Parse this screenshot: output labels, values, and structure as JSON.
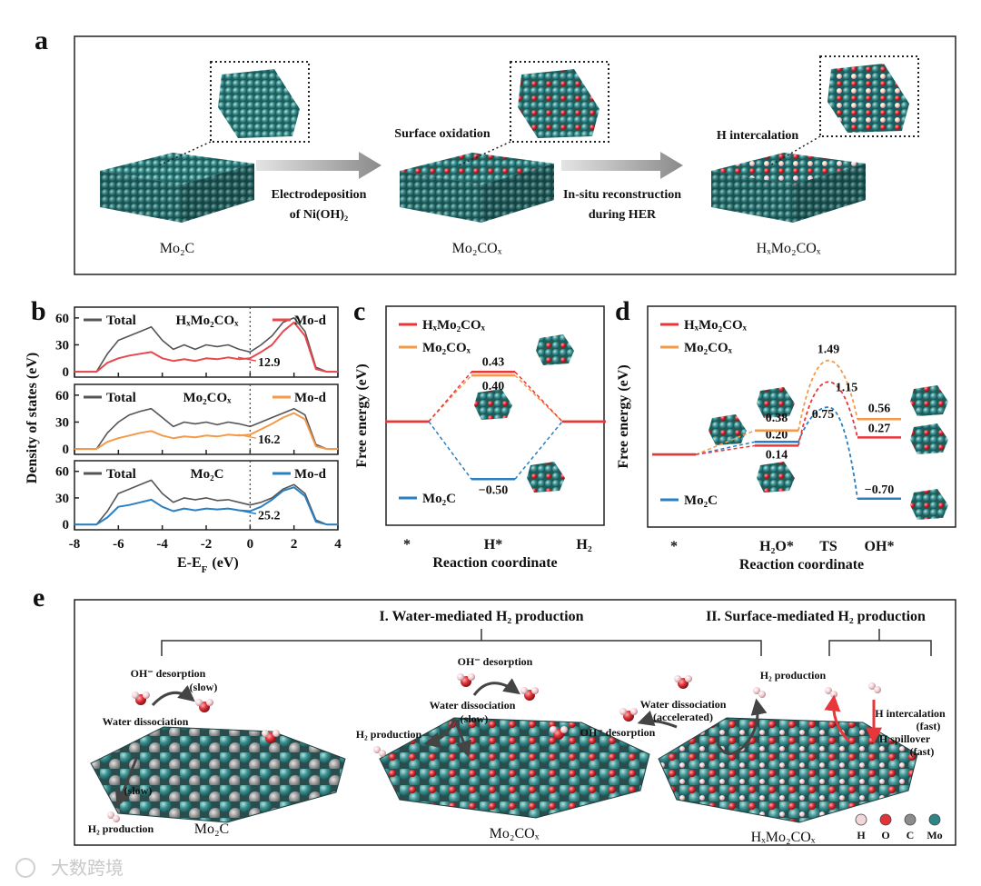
{
  "panels": {
    "a": {
      "label": "a",
      "materials": [
        "Mo₂C",
        "Mo₂COₓ",
        "HₓMo₂COₓ"
      ],
      "processes": [
        [
          "Electrodeposition",
          "of Ni(OH)₂"
        ],
        [
          "In-situ reconstruction",
          "during HER"
        ]
      ],
      "surface_notes": [
        "Surface oxidation",
        "H intercalation"
      ]
    },
    "e": {
      "label": "e",
      "groups": [
        "I. Water-mediated H₂ production",
        "II. Surface-mediated H₂ production"
      ],
      "scenes": [
        {
          "material": "Mo₂C",
          "notes": [
            {
              "text": "OH⁻ desorption"
            },
            {
              "text": "(slow)",
              "color": "#2a7fc0"
            },
            {
              "text": "Water dissociation"
            },
            {
              "text": "(slow)",
              "color": "#2a7fc0"
            },
            {
              "text": "H₂ production"
            }
          ]
        },
        {
          "material": "Mo₂COₓ",
          "notes": [
            {
              "text": "OH⁻ desorption"
            },
            {
              "text": "Water dissociation"
            },
            {
              "text": "(slow)",
              "color": "#2a7fc0"
            },
            {
              "text": "H₂ production"
            }
          ]
        },
        {
          "material": "HₓMo₂COₓ",
          "notes": [
            {
              "text": "Water dissociation"
            },
            {
              "text": "(accelerated)",
              "color": "#e8363a"
            },
            {
              "text": "OH⁻ desorption"
            },
            {
              "text": "H₂ production"
            },
            {
              "text": "H intercalation"
            },
            {
              "text": "(fast)",
              "color": "#e8363a"
            },
            {
              "text": "H spillover"
            },
            {
              "text": "(fast)",
              "color": "#e8363a"
            }
          ]
        }
      ],
      "legend": [
        {
          "name": "H",
          "color": "#f3d6da"
        },
        {
          "name": "O",
          "color": "#e0333a"
        },
        {
          "name": "C",
          "color": "#8c8c8c"
        },
        {
          "name": "Mo",
          "color": "#2f8585"
        }
      ]
    },
    "watermark": "大数跨境"
  },
  "chart_data": [
    {
      "type": "line",
      "panel_label": "b",
      "ylabel": "Density of states (eV)",
      "title": "HₓMo₂COₓ",
      "x": [
        -8,
        -7.5,
        -7,
        -6.5,
        -6,
        -5.5,
        -5,
        -4.5,
        -4,
        -3.5,
        -3,
        -2.5,
        -2,
        -1.5,
        -1,
        -0.5,
        0,
        0.5,
        1,
        1.5,
        2,
        2.5,
        3,
        3.5,
        4
      ],
      "series": [
        {
          "name": "Total",
          "color": "#555555",
          "values": [
            0,
            0,
            0,
            20,
            35,
            40,
            45,
            50,
            35,
            25,
            30,
            25,
            30,
            28,
            30,
            25,
            22,
            30,
            40,
            55,
            60,
            45,
            5,
            0,
            0
          ]
        },
        {
          "name": "Mo-d",
          "color": "#e8474c",
          "values": [
            0,
            0,
            0,
            10,
            15,
            18,
            20,
            22,
            15,
            12,
            14,
            12,
            15,
            14,
            16,
            14,
            15,
            22,
            30,
            45,
            55,
            40,
            3,
            0,
            0
          ]
        }
      ],
      "annotation": 12.9,
      "xlim": [
        -8,
        4
      ],
      "xticks": [
        -8,
        -6,
        -4,
        -2,
        0,
        2,
        4
      ],
      "ylim": [
        -6,
        72
      ],
      "yticks": [
        0,
        30,
        60
      ],
      "vline": 0
    },
    {
      "type": "line",
      "title": "Mo₂COₓ",
      "x": [
        -8,
        -7.5,
        -7,
        -6.5,
        -6,
        -5.5,
        -5,
        -4.5,
        -4,
        -3.5,
        -3,
        -2.5,
        -2,
        -1.5,
        -1,
        -0.5,
        0,
        0.5,
        1,
        1.5,
        2,
        2.5,
        3,
        3.5,
        4
      ],
      "series": [
        {
          "name": "Total",
          "color": "#555555",
          "values": [
            0,
            0,
            0,
            18,
            30,
            38,
            42,
            45,
            35,
            25,
            30,
            28,
            30,
            27,
            30,
            28,
            25,
            30,
            35,
            40,
            45,
            38,
            5,
            0,
            0
          ]
        },
        {
          "name": "Mo-d",
          "color": "#f39a4a",
          "values": [
            0,
            0,
            0,
            8,
            12,
            15,
            18,
            20,
            15,
            12,
            14,
            13,
            15,
            14,
            16,
            15,
            16,
            22,
            28,
            35,
            40,
            33,
            3,
            0,
            0
          ]
        }
      ],
      "annotation": 16.2,
      "xlim": [
        -8,
        4
      ],
      "xticks": [
        -8,
        -6,
        -4,
        -2,
        0,
        2,
        4
      ],
      "ylim": [
        -6,
        72
      ],
      "yticks": [
        0,
        30,
        60
      ],
      "vline": 0
    },
    {
      "type": "line",
      "title": "Mo₂C",
      "xlabel": {
        "text": "E-E",
        "sub": "F",
        "unit": "(eV)"
      },
      "x": [
        -8,
        -7.5,
        -7,
        -6.5,
        -6,
        -5.5,
        -5,
        -4.5,
        -4,
        -3.5,
        -3,
        -2.5,
        -2,
        -1.5,
        -1,
        -0.5,
        0,
        0.5,
        1,
        1.5,
        2,
        2.5,
        3,
        3.5,
        4
      ],
      "series": [
        {
          "name": "Total",
          "color": "#555555",
          "values": [
            0,
            0,
            0,
            15,
            35,
            40,
            45,
            50,
            35,
            25,
            30,
            28,
            30,
            27,
            28,
            25,
            22,
            25,
            30,
            40,
            45,
            35,
            5,
            0,
            0
          ]
        },
        {
          "name": "Mo-d",
          "color": "#2a7fc0",
          "values": [
            0,
            0,
            0,
            8,
            20,
            22,
            25,
            28,
            20,
            15,
            18,
            16,
            18,
            17,
            18,
            16,
            15,
            20,
            28,
            38,
            42,
            32,
            3,
            0,
            0
          ]
        }
      ],
      "annotation": 25.2,
      "xlim": [
        -8,
        4
      ],
      "xticks": [
        -8,
        -6,
        -4,
        -2,
        0,
        2,
        4
      ],
      "ylim": [
        -6,
        72
      ],
      "yticks": [
        0,
        30,
        60
      ],
      "vline": 0
    },
    {
      "type": "energy",
      "panel_label": "c",
      "ylabel": "Free energy (eV)",
      "xlabel": "Reaction coordinate",
      "categories": [
        "*",
        "H*",
        "H₂"
      ],
      "level_style": [
        "level",
        "level",
        "level"
      ],
      "series": [
        {
          "name": "HₓMo₂COₓ",
          "color": "#e8363a",
          "values": [
            0,
            0.43,
            0
          ],
          "value_labels": [
            null,
            "0.43",
            null
          ]
        },
        {
          "name": "Mo₂COₓ",
          "color": "#f39a4a",
          "values": [
            0,
            0.4,
            0
          ],
          "value_labels": [
            null,
            "0.40",
            null
          ]
        },
        {
          "name": "Mo₂C",
          "color": "#2a7fc0",
          "values": [
            0,
            -0.5,
            0
          ],
          "value_labels": [
            null,
            "−0.50",
            null
          ]
        }
      ],
      "ylim": [
        -0.9,
        1.0
      ]
    },
    {
      "type": "energy",
      "panel_label": "d",
      "ylabel": "Free energy (eV)",
      "xlabel": "Reaction coordinate",
      "categories": [
        "*",
        "H₂O*",
        "TS",
        "OH*"
      ],
      "level_style": [
        "level",
        "level",
        "peak",
        "level"
      ],
      "series": [
        {
          "name": "HₓMo₂COₓ",
          "color": "#e8363a",
          "values": [
            0,
            0.14,
            1.15,
            0.27
          ],
          "value_labels": [
            null,
            "0.14",
            "1.15",
            "0.27"
          ]
        },
        {
          "name": "Mo₂COₓ",
          "color": "#f39a4a",
          "values": [
            0,
            0.38,
            1.49,
            0.56
          ],
          "value_labels": [
            null,
            "0.38",
            "1.49",
            "0.56"
          ]
        },
        {
          "name": "Mo₂C",
          "color": "#2a7fc0",
          "values": [
            0,
            0.2,
            0.75,
            -0.7
          ],
          "value_labels": [
            null,
            "0.20",
            "0.75",
            "−0.70"
          ]
        }
      ],
      "ylim": [
        -1.15,
        2.35
      ]
    }
  ]
}
